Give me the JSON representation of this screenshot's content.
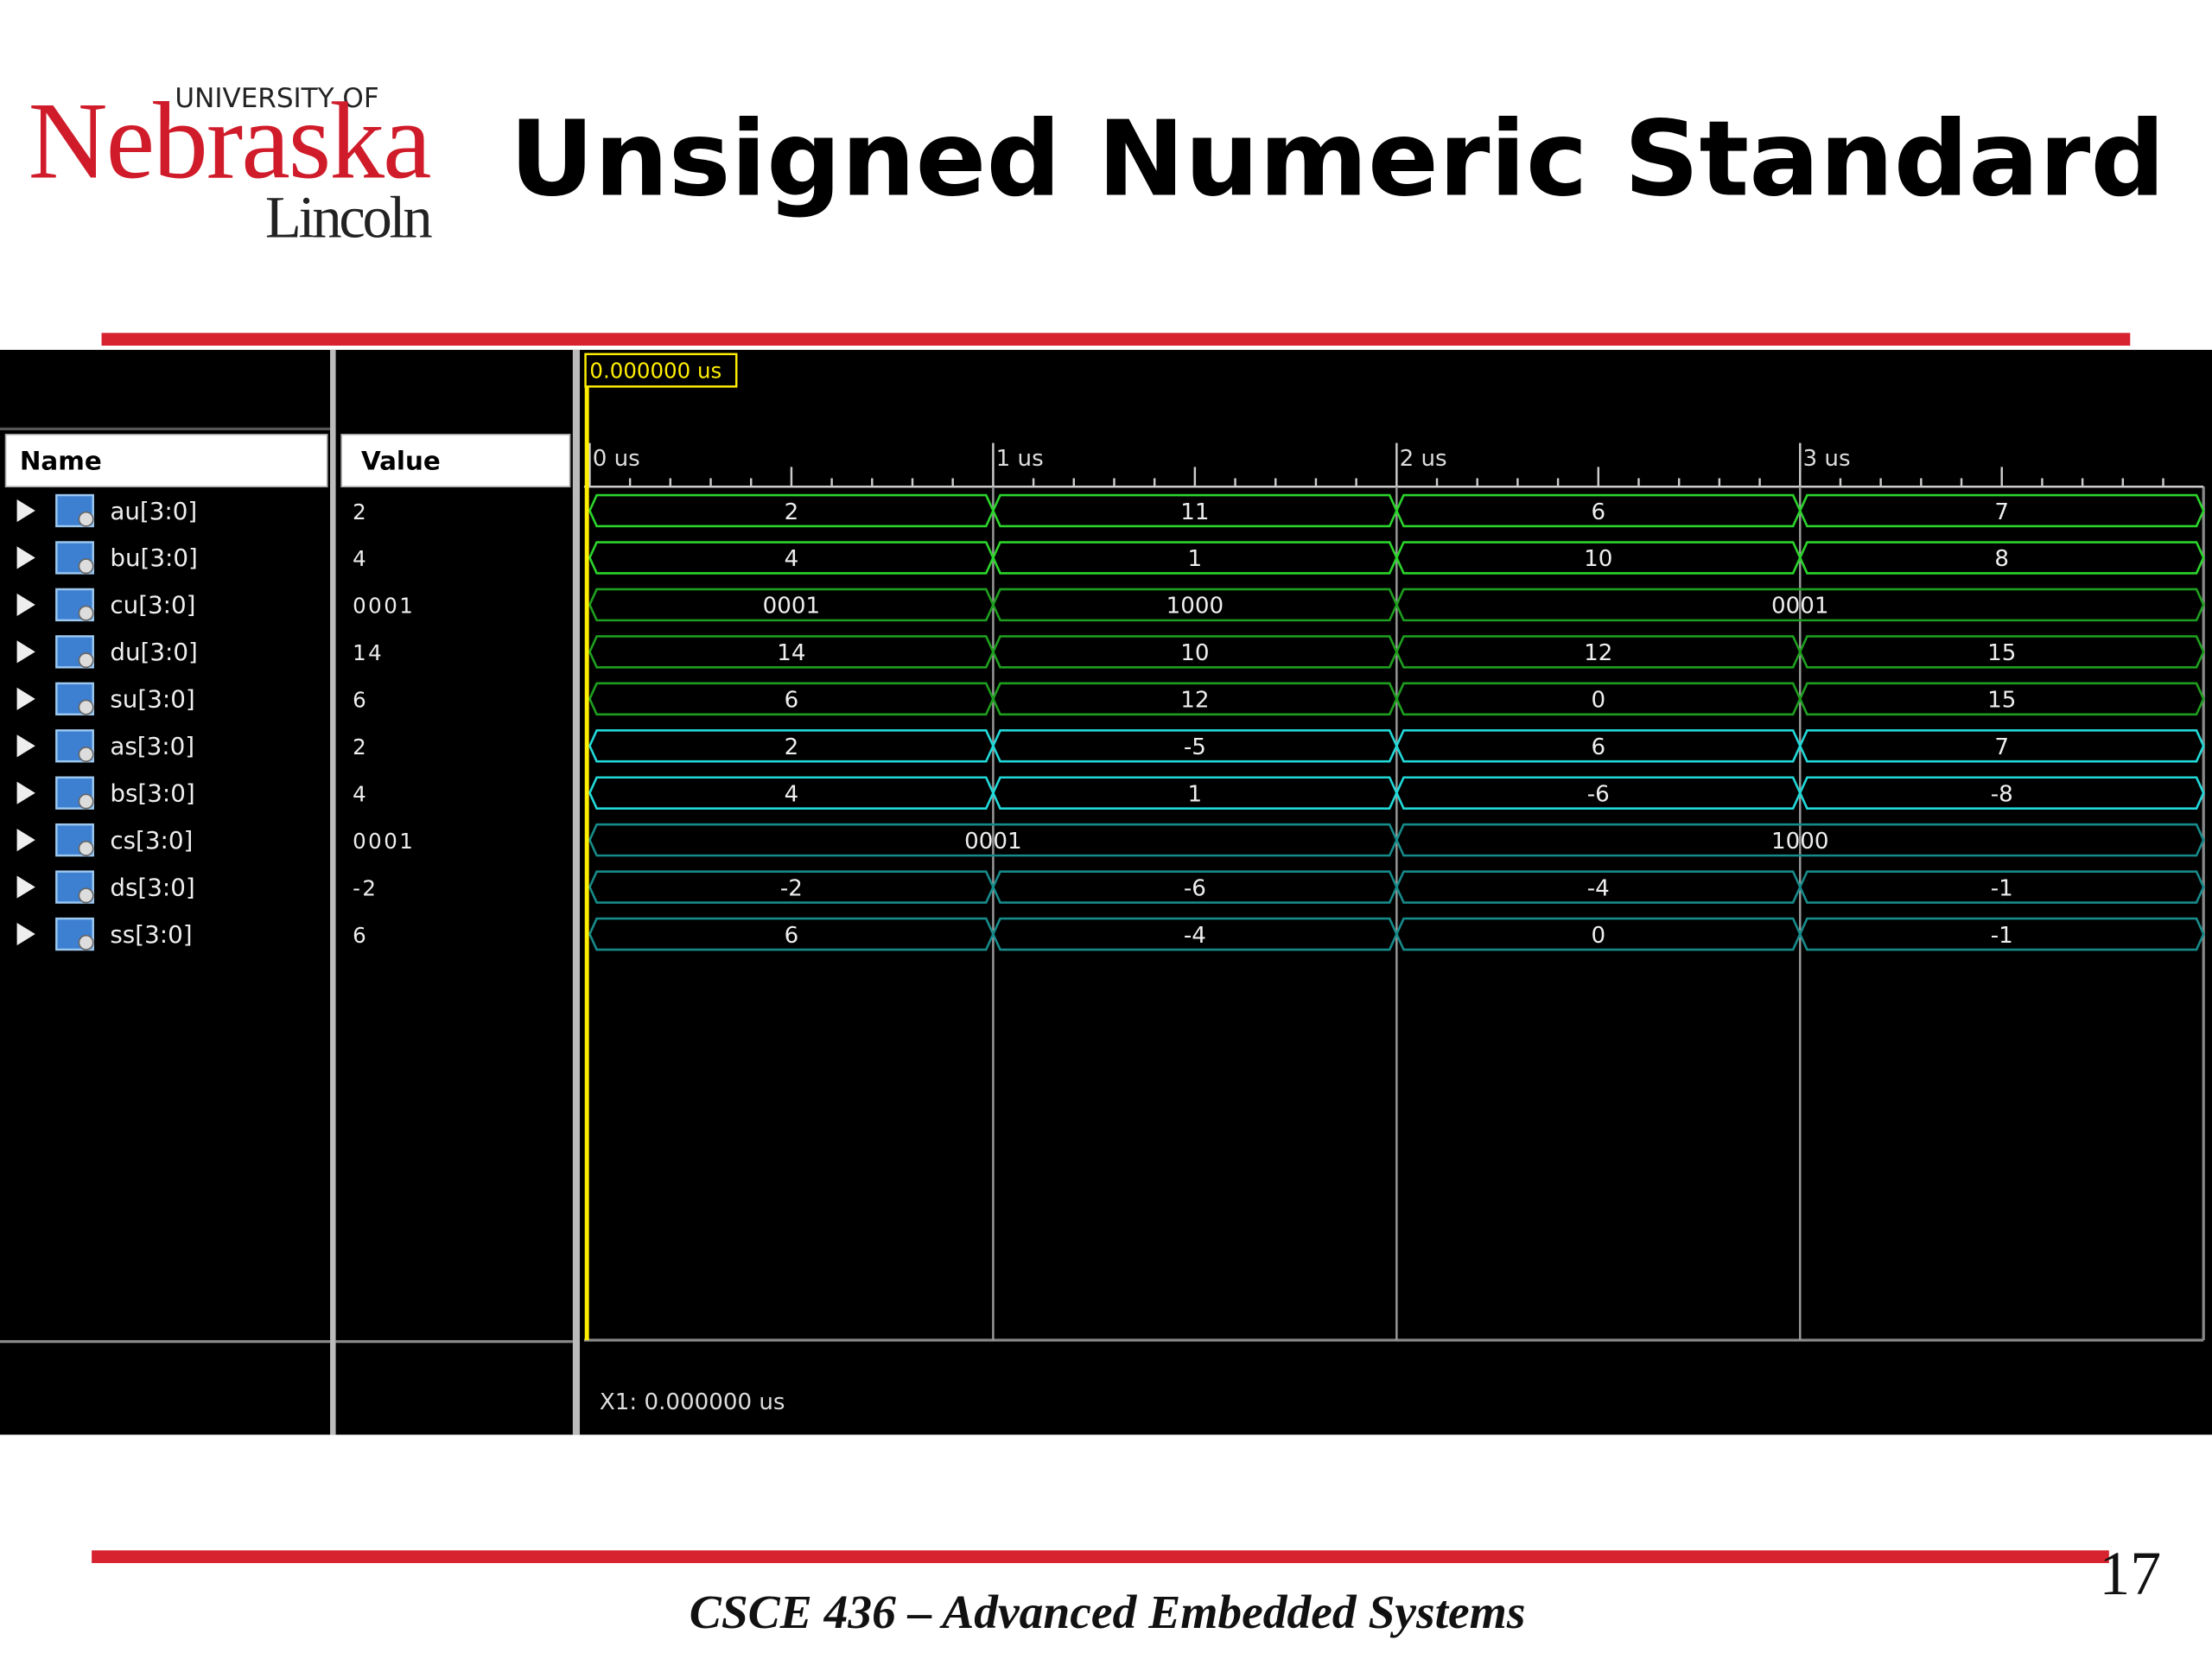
{
  "header": {
    "logo_top": "UNIVERSITY OF",
    "logo_main": "Nebraska",
    "logo_bottom": "Lincoln",
    "title": "Unsigned Numeric Standard"
  },
  "waveform": {
    "cursor_label": "0.000000 us",
    "name_header": "Name",
    "value_header": "Value",
    "time_range": [
      0,
      4
    ],
    "time_ticks": [
      {
        "value": 0,
        "label": "0 us"
      },
      {
        "value": 1,
        "label": "1 us"
      },
      {
        "value": 2,
        "label": "2 us"
      },
      {
        "value": 3,
        "label": "3 us"
      }
    ],
    "signals": [
      {
        "name": "au[3:0]",
        "value": "2",
        "color": "#2bd42b",
        "segments": [
          {
            "value": "2",
            "from": 0,
            "to": 1
          },
          {
            "value": "11",
            "from": 1,
            "to": 2
          },
          {
            "value": "6",
            "from": 2,
            "to": 3
          },
          {
            "value": "7",
            "from": 3,
            "to": 4
          }
        ]
      },
      {
        "name": "bu[3:0]",
        "value": "4",
        "color": "#2bd42b",
        "segments": [
          {
            "value": "4",
            "from": 0,
            "to": 1
          },
          {
            "value": "1",
            "from": 1,
            "to": 2
          },
          {
            "value": "10",
            "from": 2,
            "to": 3
          },
          {
            "value": "8",
            "from": 3,
            "to": 4
          }
        ]
      },
      {
        "name": "cu[3:0]",
        "value": "0001",
        "color": "#1e9e1e",
        "segments": [
          {
            "value": "0001",
            "from": 0,
            "to": 1
          },
          {
            "value": "1000",
            "from": 1,
            "to": 2
          },
          {
            "value": "0001",
            "from": 2,
            "to": 4
          }
        ]
      },
      {
        "name": "du[3:0]",
        "value": "14",
        "color": "#1e9e1e",
        "segments": [
          {
            "value": "14",
            "from": 0,
            "to": 1
          },
          {
            "value": "10",
            "from": 1,
            "to": 2
          },
          {
            "value": "12",
            "from": 2,
            "to": 3
          },
          {
            "value": "15",
            "from": 3,
            "to": 4
          }
        ]
      },
      {
        "name": "su[3:0]",
        "value": "6",
        "color": "#1e9e1e",
        "segments": [
          {
            "value": "6",
            "from": 0,
            "to": 1
          },
          {
            "value": "12",
            "from": 1,
            "to": 2
          },
          {
            "value": "0",
            "from": 2,
            "to": 3
          },
          {
            "value": "15",
            "from": 3,
            "to": 4
          }
        ]
      },
      {
        "name": "as[3:0]",
        "value": "2",
        "color": "#22d8d8",
        "segments": [
          {
            "value": "2",
            "from": 0,
            "to": 1
          },
          {
            "value": "-5",
            "from": 1,
            "to": 2
          },
          {
            "value": "6",
            "from": 2,
            "to": 3
          },
          {
            "value": "7",
            "from": 3,
            "to": 4
          }
        ]
      },
      {
        "name": "bs[3:0]",
        "value": "4",
        "color": "#22d8d8",
        "segments": [
          {
            "value": "4",
            "from": 0,
            "to": 1
          },
          {
            "value": "1",
            "from": 1,
            "to": 2
          },
          {
            "value": "-6",
            "from": 2,
            "to": 3
          },
          {
            "value": "-8",
            "from": 3,
            "to": 4
          }
        ]
      },
      {
        "name": "cs[3:0]",
        "value": "0001",
        "color": "#178a8a",
        "segments": [
          {
            "value": "0001",
            "from": 0,
            "to": 2
          },
          {
            "value": "1000",
            "from": 2,
            "to": 4
          }
        ]
      },
      {
        "name": "ds[3:0]",
        "value": "-2",
        "color": "#178a8a",
        "segments": [
          {
            "value": "-2",
            "from": 0,
            "to": 1
          },
          {
            "value": "-6",
            "from": 1,
            "to": 2
          },
          {
            "value": "-4",
            "from": 2,
            "to": 3
          },
          {
            "value": "-1",
            "from": 3,
            "to": 4
          }
        ]
      },
      {
        "name": "ss[3:0]",
        "value": "6",
        "color": "#178a8a",
        "segments": [
          {
            "value": "6",
            "from": 0,
            "to": 1
          },
          {
            "value": "-4",
            "from": 1,
            "to": 2
          },
          {
            "value": "0",
            "from": 2,
            "to": 3
          },
          {
            "value": "-1",
            "from": 3,
            "to": 4
          }
        ]
      }
    ],
    "status": "X1: 0.000000 us"
  },
  "footer": {
    "course": "CSCE 436 – Advanced Embedded Systems",
    "page": "17"
  }
}
